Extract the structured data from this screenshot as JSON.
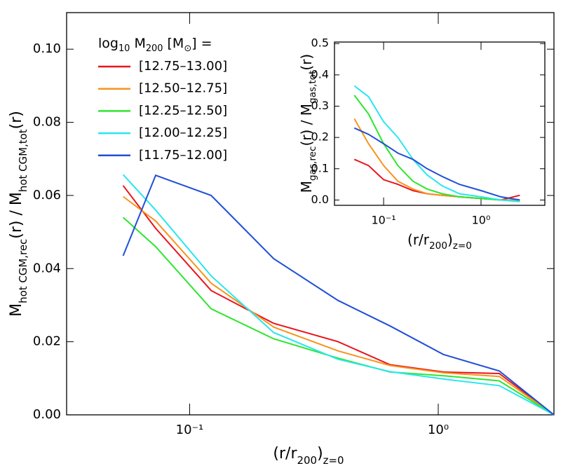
{
  "chart_data": [
    {
      "type": "line",
      "xlabel": [
        "(r/r",
        "200",
        ")",
        "z=0"
      ],
      "ylabel": [
        "M",
        "hot CGM,rec",
        "(r)  /  M",
        "hot CGM,tot",
        "(r)"
      ],
      "legend_title": [
        "log",
        "10",
        " M",
        "200",
        " [M",
        "⊙",
        "] ="
      ],
      "xscale": "log",
      "xlim": [
        0.032,
        2.92
      ],
      "ylim": [
        0,
        0.11
      ],
      "xticks": [
        {
          "value": 0.1,
          "label": "10⁻¹"
        },
        {
          "value": 1,
          "label": "10⁰"
        }
      ],
      "yticks": [
        {
          "value": 0,
          "label": "0.00"
        },
        {
          "value": 0.02,
          "label": "0.02"
        },
        {
          "value": 0.04,
          "label": "0.04"
        },
        {
          "value": 0.06,
          "label": "0.06"
        },
        {
          "value": 0.08,
          "label": "0.08"
        },
        {
          "value": 0.1,
          "label": "0.10"
        }
      ],
      "x": [
        0.054,
        0.073,
        0.122,
        0.218,
        0.395,
        0.64,
        1.05,
        1.76,
        2.92
      ],
      "series": [
        {
          "name": "[12.75–13.00]",
          "color": "#e8141c",
          "values": [
            0.0627,
            0.051,
            0.034,
            0.025,
            0.02,
            0.0137,
            0.0117,
            0.0113,
            0
          ]
        },
        {
          "name": "[12.50–12.75]",
          "color": "#f7941d",
          "values": [
            0.0597,
            0.053,
            0.036,
            0.024,
            0.0175,
            0.0135,
            0.0115,
            0.0105,
            0
          ]
        },
        {
          "name": "[12.25–12.50]",
          "color": "#2ee62e",
          "values": [
            0.054,
            0.046,
            0.029,
            0.0208,
            0.0155,
            0.0117,
            0.0107,
            0.0093,
            0
          ]
        },
        {
          "name": "[12.00–12.25]",
          "color": "#29e6f0",
          "values": [
            0.0657,
            0.056,
            0.038,
            0.0225,
            0.0152,
            0.0118,
            0.0098,
            0.008,
            0
          ]
        },
        {
          "name": "[11.75–12.00]",
          "color": "#1f4fd8",
          "values": [
            0.0435,
            0.0655,
            0.06,
            0.0427,
            0.0313,
            0.0243,
            0.0165,
            0.012,
            0
          ]
        }
      ]
    },
    {
      "type": "line",
      "xlabel": [
        "(r/r",
        "200",
        ")",
        "z=0"
      ],
      "ylabel": [
        "M",
        "gas,rec",
        "(r)  /  M",
        "gas,tot",
        "(r)"
      ],
      "xscale": "log",
      "xlim": [
        0.0313,
        4.52
      ],
      "ylim": [
        -0.017,
        0.505
      ],
      "xticks": [
        {
          "value": 0.1,
          "label": "10⁻¹"
        },
        {
          "value": 1,
          "label": "10⁰"
        }
      ],
      "yticks": [
        {
          "value": 0,
          "label": "0.0"
        },
        0.1,
        0.2,
        0.3,
        0.4,
        0.5
      ],
      "x": [
        0.05,
        0.07,
        0.1,
        0.14,
        0.2,
        0.28,
        0.4,
        0.6,
        1.0,
        1.6,
        2.5
      ],
      "series": [
        {
          "color": "#e8141c",
          "values": [
            0.13,
            0.11,
            0.065,
            0.05,
            0.03,
            0.02,
            0.015,
            0.01,
            0.005,
            0,
            0.015
          ]
        },
        {
          "color": "#f7941d",
          "values": [
            0.26,
            0.18,
            0.11,
            0.06,
            0.035,
            0.02,
            0.015,
            0.01,
            0.005,
            0,
            0
          ]
        },
        {
          "color": "#2ee62e",
          "values": [
            0.335,
            0.275,
            0.18,
            0.11,
            0.06,
            0.035,
            0.02,
            0.01,
            0.005,
            0,
            -0.005
          ]
        },
        {
          "color": "#29e6f0",
          "values": [
            0.365,
            0.33,
            0.25,
            0.2,
            0.13,
            0.08,
            0.045,
            0.02,
            0.01,
            0,
            -0.005
          ]
        },
        {
          "color": "#1f4fd8",
          "values": [
            0.23,
            0.21,
            0.18,
            0.15,
            0.13,
            0.1,
            0.075,
            0.05,
            0.03,
            0.01,
            0
          ]
        }
      ]
    }
  ]
}
